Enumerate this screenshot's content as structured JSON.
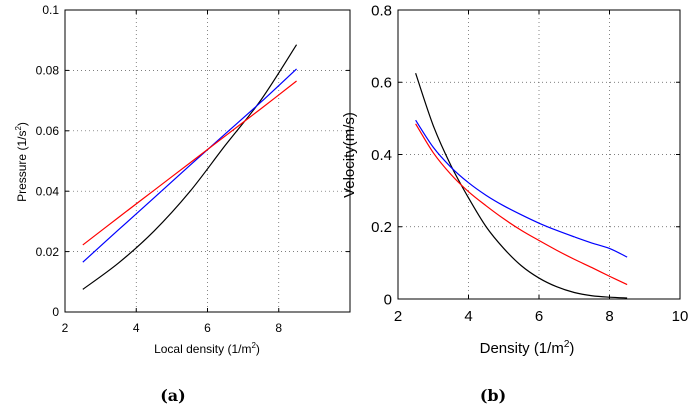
{
  "chart_data": [
    {
      "type": "line",
      "title": "",
      "xlabel": "Local density",
      "xlabel_unit": "(1/m",
      "xlabel_unit_sup": "2",
      "xlabel_unit_close": ")",
      "ylabel": "Pressure",
      "ylabel_unit": "(1/s",
      "ylabel_unit_sup": "2",
      "ylabel_unit_close": ")",
      "xlim": [
        2,
        10
      ],
      "ylim": [
        0,
        0.1
      ],
      "xticks": [
        "2",
        "4",
        "6",
        "8"
      ],
      "yticks": [
        "0",
        "0.02",
        "0.04",
        "0.06",
        "0.08",
        "0.1"
      ],
      "grid": true,
      "caption": "(a)",
      "series": [
        {
          "color": "#000000",
          "x": [
            2.5,
            3.5,
            4.5,
            5.5,
            6.5,
            7.5,
            8.5
          ],
          "y": [
            0.0075,
            0.0162,
            0.0268,
            0.0398,
            0.0552,
            0.0702,
            0.0885
          ]
        },
        {
          "color": "#0000ff",
          "x": [
            2.5,
            3.5,
            4.5,
            5.5,
            6.5,
            7.5,
            8.5
          ],
          "y": [
            0.0165,
            0.0272,
            0.0378,
            0.0485,
            0.059,
            0.0695,
            0.0805
          ]
        },
        {
          "color": "#ff0000",
          "x": [
            2.5,
            3.5,
            4.5,
            5.5,
            6.5,
            7.5,
            8.5
          ],
          "y": [
            0.0222,
            0.0313,
            0.0403,
            0.0493,
            0.0583,
            0.0673,
            0.0765
          ]
        }
      ]
    },
    {
      "type": "line",
      "title": "",
      "xlabel": "Density",
      "xlabel_unit": "(1/m",
      "xlabel_unit_sup": "2",
      "xlabel_unit_close": ")",
      "ylabel": "Velocity(m/s)",
      "xlim": [
        2,
        10
      ],
      "ylim": [
        0,
        0.8
      ],
      "xticks": [
        "2",
        "4",
        "6",
        "8",
        "10"
      ],
      "yticks": [
        "0",
        "0.2",
        "0.4",
        "0.6",
        "0.8"
      ],
      "grid": true,
      "caption": "(b)",
      "series": [
        {
          "color": "#000000",
          "x": [
            2.5,
            3.0,
            3.5,
            4.0,
            4.5,
            5.0,
            5.5,
            6.0,
            6.5,
            7.0,
            7.5,
            8.0,
            8.5
          ],
          "y": [
            0.625,
            0.48,
            0.37,
            0.28,
            0.2,
            0.14,
            0.092,
            0.058,
            0.034,
            0.018,
            0.009,
            0.005,
            0.003
          ]
        },
        {
          "color": "#0000ff",
          "x": [
            2.5,
            3.0,
            3.5,
            4.0,
            4.5,
            5.0,
            5.5,
            6.0,
            6.5,
            7.0,
            7.5,
            8.0,
            8.5
          ],
          "y": [
            0.495,
            0.42,
            0.365,
            0.322,
            0.287,
            0.258,
            0.233,
            0.21,
            0.19,
            0.172,
            0.155,
            0.14,
            0.116
          ]
        },
        {
          "color": "#ff0000",
          "x": [
            2.5,
            3.0,
            3.5,
            4.0,
            4.5,
            5.0,
            5.5,
            6.0,
            6.5,
            7.0,
            7.5,
            8.0,
            8.5
          ],
          "y": [
            0.485,
            0.405,
            0.345,
            0.297,
            0.258,
            0.222,
            0.19,
            0.162,
            0.135,
            0.11,
            0.087,
            0.063,
            0.04
          ]
        }
      ]
    }
  ]
}
